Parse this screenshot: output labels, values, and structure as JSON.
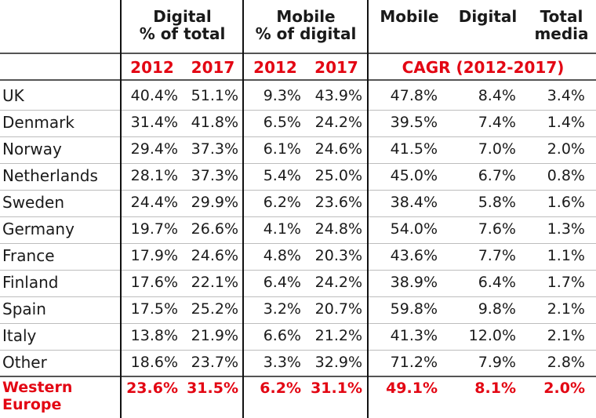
{
  "chart_data": {
    "type": "table",
    "header_groups": {
      "digital_total": [
        "Digital",
        "% of total"
      ],
      "mobile_digital": [
        "Mobile",
        "% of digital"
      ],
      "cagr_mobile": [
        "Mobile"
      ],
      "cagr_digital": [
        "Digital"
      ],
      "cagr_total": [
        "Total",
        "media"
      ]
    },
    "subheaders": {
      "y2012_a": "2012",
      "y2017_a": "2017",
      "y2012_b": "2012",
      "y2017_b": "2017",
      "cagr": "CAGR (2012-2017)"
    },
    "rows": [
      {
        "country": "UK",
        "values": [
          "40.4%",
          "51.1%",
          "9.3%",
          "43.9%",
          "47.8%",
          "8.4%",
          "3.4%"
        ]
      },
      {
        "country": "Denmark",
        "values": [
          "31.4%",
          "41.8%",
          "6.5%",
          "24.2%",
          "39.5%",
          "7.4%",
          "1.4%"
        ]
      },
      {
        "country": "Norway",
        "values": [
          "29.4%",
          "37.3%",
          "6.1%",
          "24.6%",
          "41.5%",
          "7.0%",
          "2.0%"
        ]
      },
      {
        "country": "Netherlands",
        "values": [
          "28.1%",
          "37.3%",
          "5.4%",
          "25.0%",
          "45.0%",
          "6.7%",
          "0.8%"
        ]
      },
      {
        "country": "Sweden",
        "values": [
          "24.4%",
          "29.9%",
          "6.2%",
          "23.6%",
          "38.4%",
          "5.8%",
          "1.6%"
        ]
      },
      {
        "country": "Germany",
        "values": [
          "19.7%",
          "26.6%",
          "4.1%",
          "24.8%",
          "54.0%",
          "7.6%",
          "1.3%"
        ]
      },
      {
        "country": "France",
        "values": [
          "17.9%",
          "24.6%",
          "4.8%",
          "20.3%",
          "43.6%",
          "7.7%",
          "1.1%"
        ]
      },
      {
        "country": "Finland",
        "values": [
          "17.6%",
          "22.1%",
          "6.4%",
          "24.2%",
          "38.9%",
          "6.4%",
          "1.7%"
        ]
      },
      {
        "country": "Spain",
        "values": [
          "17.5%",
          "25.2%",
          "3.2%",
          "20.7%",
          "59.8%",
          "9.8%",
          "2.1%"
        ]
      },
      {
        "country": "Italy",
        "values": [
          "13.8%",
          "21.9%",
          "6.6%",
          "21.2%",
          "41.3%",
          "12.0%",
          "2.1%"
        ]
      },
      {
        "country": "Other",
        "values": [
          "18.6%",
          "23.7%",
          "3.3%",
          "32.9%",
          "71.2%",
          "7.9%",
          "2.8%"
        ]
      }
    ],
    "total_row": {
      "country_lines": [
        "Western",
        "Europe"
      ],
      "values": [
        "23.6%",
        "31.5%",
        "6.2%",
        "31.1%",
        "49.1%",
        "8.1%",
        "2.0%"
      ]
    },
    "colors": {
      "accent": "#e30613",
      "text": "#1a1a1a",
      "rule": "#111111"
    }
  }
}
